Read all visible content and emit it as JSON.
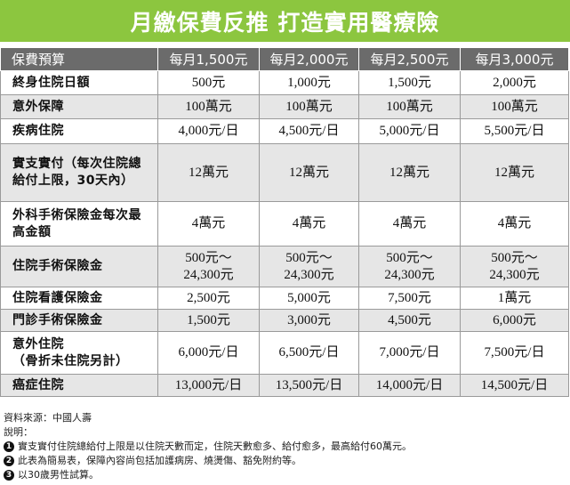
{
  "title": "月繳保費反推 打造實用醫療險",
  "header": {
    "label": "保費預算",
    "plans": [
      "每月1,500元",
      "每月2,000元",
      "每月2,500元",
      "每月3,000元"
    ]
  },
  "rows": [
    {
      "label": "終身住院日額",
      "values": [
        "500元",
        "1,000元",
        "1,500元",
        "2,000元"
      ]
    },
    {
      "label": "意外保障",
      "values": [
        "100萬元",
        "100萬元",
        "100萬元",
        "100萬元"
      ]
    },
    {
      "label": "疾病住院",
      "values": [
        "4,000元/日",
        "4,500元/日",
        "5,000元/日",
        "5,500元/日"
      ]
    },
    {
      "label": "實支實付（每次住院總給付上限，30天內）",
      "values": [
        "12萬元",
        "12萬元",
        "12萬元",
        "12萬元"
      ]
    },
    {
      "label": "外科手術保險金每次最高金額",
      "values": [
        "4萬元",
        "4萬元",
        "4萬元",
        "4萬元"
      ]
    },
    {
      "label": "住院手術保險金",
      "values": [
        "500元～\n24,300元",
        "500元～\n24,300元",
        "500元～\n24,300元",
        "500元～\n24,300元"
      ]
    },
    {
      "label": "住院看護保險金",
      "values": [
        "2,500元",
        "5,000元",
        "7,500元",
        "1萬元"
      ]
    },
    {
      "label": "門診手術保險金",
      "values": [
        "1,500元",
        "3,000元",
        "4,500元",
        "6,000元"
      ]
    },
    {
      "label": "意外住院\n（骨折未住院另計）",
      "values": [
        "6,000元/日",
        "6,500元/日",
        "7,000元/日",
        "7,500元/日"
      ]
    },
    {
      "label": "癌症住院",
      "values": [
        "13,000元/日",
        "13,500元/日",
        "14,000元/日",
        "14,500元/日"
      ]
    }
  ],
  "notes": {
    "source": "資料來源：中國人壽",
    "heading": "說明：",
    "items": [
      {
        "num": "1",
        "text": "實支實付住院總給付上限是以住院天數而定，住院天數愈多、給付愈多，最高給付60萬元。"
      },
      {
        "num": "2",
        "text": "此表為簡易表，保障內容尚包括加護病房、燒燙傷、豁免附約等。"
      },
      {
        "num": "3",
        "text": "以30歲男性試算。"
      }
    ]
  },
  "colors": {
    "title_bg": "#8cc63f",
    "header_bg": "#6b6b6b",
    "alt_row": "#e6e6e6"
  }
}
